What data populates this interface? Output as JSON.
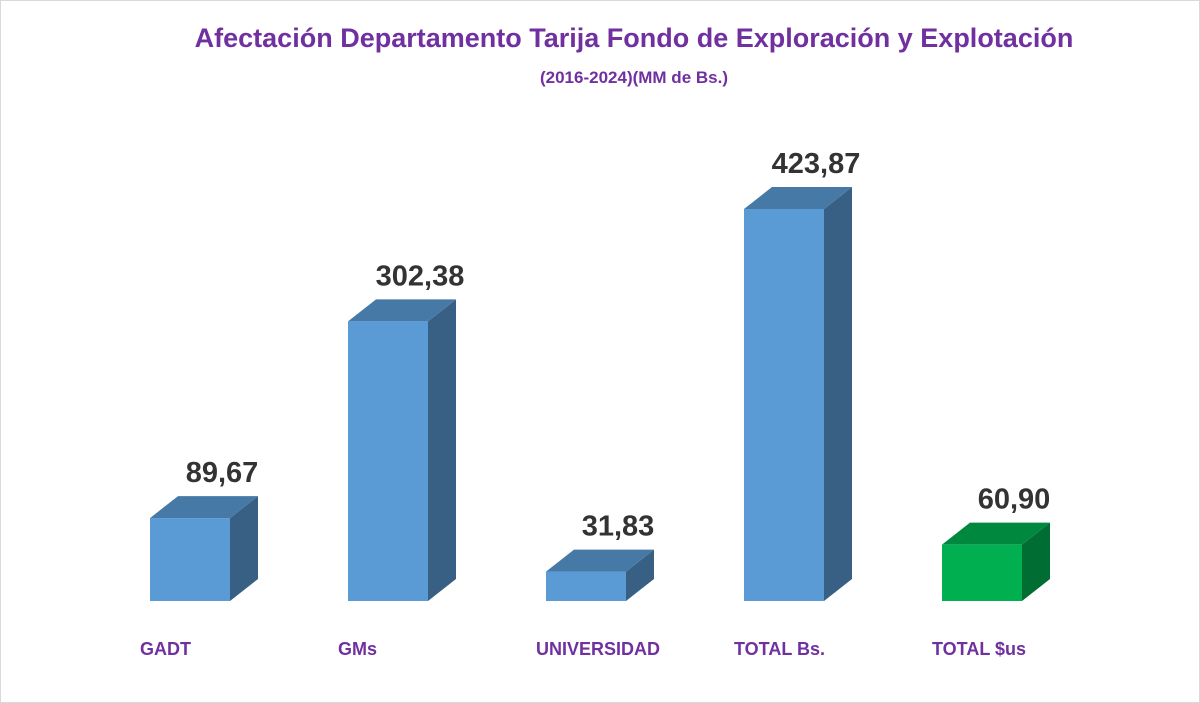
{
  "chart_data": {
    "type": "bar",
    "title": "Afectación Departamento Tarija Fondo de Exploración y Explotación",
    "subtitle": "(2016-2024)(MM  de Bs.)",
    "categories": [
      "GADT",
      "GMs",
      "UNIVERSIDAD",
      "TOTAL Bs.",
      "TOTAL $us"
    ],
    "values": [
      89.67,
      302.38,
      31.83,
      423.87,
      60.9
    ],
    "value_labels": [
      "89,67",
      "302,38",
      "31,83",
      "423,87",
      "60,90"
    ],
    "bar_colors": [
      "#5b9bd5",
      "#5b9bd5",
      "#5b9bd5",
      "#5b9bd5",
      "#00b050"
    ],
    "ylim": [
      0,
      423.87
    ],
    "grid": false,
    "legend": "none"
  }
}
